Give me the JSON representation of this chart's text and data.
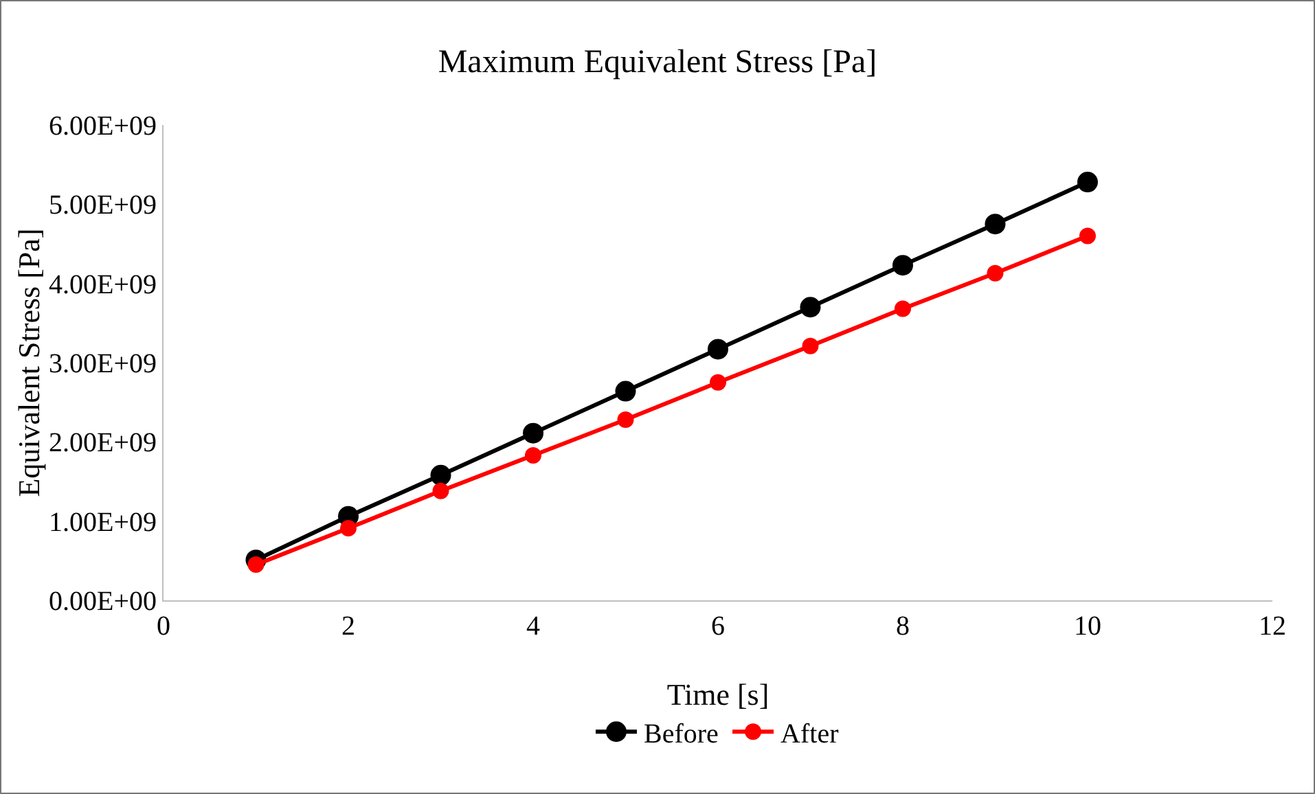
{
  "chart_data": {
    "type": "line",
    "title": "Maximum Equivalent Stress [Pa]",
    "xlabel": "Time [s]",
    "ylabel": "Equivalent Stress [Pa]",
    "x": [
      1,
      2,
      3,
      4,
      5,
      6,
      7,
      8,
      9,
      10
    ],
    "series": [
      {
        "name": "Before",
        "color": "#000000",
        "values": [
          510000000.0,
          1060000000.0,
          1580000000.0,
          2110000000.0,
          2640000000.0,
          3170000000.0,
          3700000000.0,
          4230000000.0,
          4750000000.0,
          5280000000.0
        ]
      },
      {
        "name": "After",
        "color": "#ff0000",
        "values": [
          450000000.0,
          910000000.0,
          1380000000.0,
          1830000000.0,
          2280000000.0,
          2750000000.0,
          3210000000.0,
          3680000000.0,
          4130000000.0,
          4600000000.0
        ]
      }
    ],
    "xlim": [
      0,
      12
    ],
    "xticks": [
      0,
      2,
      4,
      6,
      8,
      10,
      12
    ],
    "ylim": [
      0,
      6000000000.0
    ],
    "yticks": [
      {
        "value": 0,
        "label": "0.00E+00"
      },
      {
        "value": 1000000000.0,
        "label": "1.00E+09"
      },
      {
        "value": 2000000000.0,
        "label": "2.00E+09"
      },
      {
        "value": 3000000000.0,
        "label": "3.00E+09"
      },
      {
        "value": 4000000000.0,
        "label": "4.00E+09"
      },
      {
        "value": 5000000000.0,
        "label": "5.00E+09"
      },
      {
        "value": 6000000000.0,
        "label": "6.00E+09"
      }
    ],
    "grid": false,
    "legend": "bottom",
    "marker": "circle",
    "line_style": "solid"
  }
}
